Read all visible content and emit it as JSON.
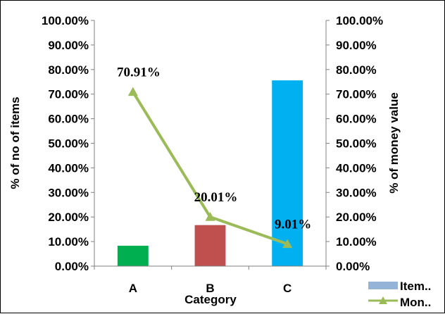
{
  "chart_data": {
    "type": "bar",
    "categories": [
      "A",
      "B",
      "C"
    ],
    "xlabel": "Category",
    "ylabel": "% of no of items",
    "y2label": "% of money value",
    "ylim": [
      0,
      100
    ],
    "yticks": [
      "0.00%",
      "10.00%",
      "20.00%",
      "30.00%",
      "40.00%",
      "50.00%",
      "60.00%",
      "70.00%",
      "80.00%",
      "90.00%",
      "100.00%"
    ],
    "grid": false,
    "legend_position": "bottom-right",
    "series": [
      {
        "name": "Item..",
        "type": "bar",
        "axis": "primary",
        "values": [
          8.3,
          16.7,
          75.6
        ],
        "colors": [
          "#00B050",
          "#C0504D",
          "#00B0F0"
        ],
        "legend_color": "#95B3D7"
      },
      {
        "name": "Mon..",
        "type": "line",
        "axis": "secondary",
        "values": [
          70.91,
          20.01,
          9.01
        ],
        "labels": [
          "70.91%",
          "20.01%",
          "9.01%"
        ],
        "color": "#9BBB59",
        "marker": "triangle"
      }
    ]
  }
}
